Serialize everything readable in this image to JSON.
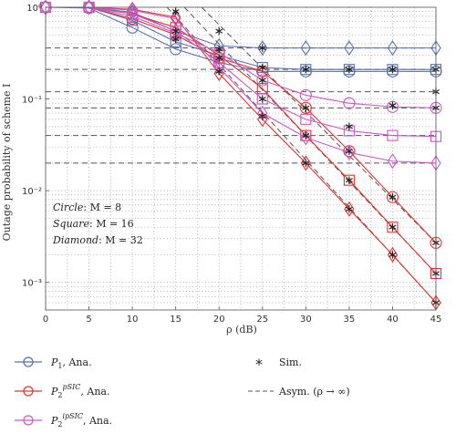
{
  "chart_data": {
    "type": "line",
    "xlabel": "ρ (dB)",
    "ylabel": "Outage probability of scheme I",
    "x_scale": "linear",
    "y_scale": "log",
    "xlim": [
      0,
      45
    ],
    "ylim": [
      0.0005,
      1
    ],
    "grid": true,
    "xticks": [
      0,
      5,
      10,
      15,
      20,
      25,
      30,
      35,
      40,
      45
    ],
    "xtick_labels": [
      "0",
      "5",
      "10",
      "15",
      "20",
      "25",
      "30",
      "35",
      "40",
      "45"
    ],
    "yticks": [
      1,
      0.1,
      0.01,
      0.001
    ],
    "ytick_labels": [
      "10⁰",
      "10⁻¹",
      "10⁻²",
      "10⁻³"
    ],
    "annotations": [
      {
        "shape_word": "Circle",
        "text": ": M = 8"
      },
      {
        "shape_word": "Square",
        "text": ": M = 16"
      },
      {
        "shape_word": "Diamond",
        "text": ": M = 32"
      }
    ],
    "colors": {
      "P1": "#5a6fb0",
      "P2pSIC": "#e8302a",
      "P2ipSIC": "#c65bc6",
      "asym": "#555555",
      "sim": "#222222"
    },
    "x": [
      0,
      5,
      10,
      15,
      20,
      25,
      30,
      35,
      40,
      45
    ],
    "series": [
      {
        "group": "P1",
        "marker": "circle",
        "values": [
          1,
          0.98,
          0.6,
          0.35,
          0.25,
          0.2,
          0.2,
          0.2,
          0.2,
          0.2
        ]
      },
      {
        "group": "P1",
        "marker": "square",
        "values": [
          1,
          1,
          0.72,
          0.42,
          0.3,
          0.22,
          0.21,
          0.21,
          0.21,
          0.21
        ]
      },
      {
        "group": "P1",
        "marker": "diamond",
        "values": [
          1,
          1,
          0.88,
          0.55,
          0.38,
          0.36,
          0.36,
          0.36,
          0.36,
          0.36
        ]
      },
      {
        "group": "P2pSIC",
        "marker": "circle",
        "values": [
          1,
          1,
          0.75,
          0.5,
          0.28,
          0.2,
          0.08,
          0.027,
          0.0085,
          0.0027
        ]
      },
      {
        "group": "P2pSIC",
        "marker": "square",
        "values": [
          1,
          1,
          0.85,
          0.6,
          0.3,
          0.13,
          0.04,
          0.013,
          0.004,
          0.00125
        ]
      },
      {
        "group": "P2pSIC",
        "marker": "diamond",
        "values": [
          1,
          1,
          0.95,
          0.78,
          0.19,
          0.06,
          0.02,
          0.0063,
          0.002,
          0.0006
        ]
      },
      {
        "group": "P2ipSIC",
        "marker": "circle",
        "values": [
          1,
          1,
          0.8,
          0.52,
          0.32,
          0.16,
          0.11,
          0.09,
          0.082,
          0.08
        ]
      },
      {
        "group": "P2ipSIC",
        "marker": "square",
        "values": [
          1,
          1,
          0.85,
          0.55,
          0.25,
          0.1,
          0.06,
          0.045,
          0.04,
          0.039
        ]
      },
      {
        "group": "P2ipSIC",
        "marker": "diamond",
        "values": [
          1,
          1,
          0.93,
          0.75,
          0.22,
          0.07,
          0.038,
          0.026,
          0.021,
          0.02
        ]
      }
    ],
    "sim_points": [
      [
        15,
        0.9
      ],
      [
        15,
        0.55
      ],
      [
        15,
        0.45
      ],
      [
        20,
        0.55
      ],
      [
        20,
        0.35
      ],
      [
        20,
        0.28
      ],
      [
        20,
        0.2
      ],
      [
        25,
        0.36
      ],
      [
        25,
        0.22
      ],
      [
        25,
        0.16
      ],
      [
        25,
        0.1
      ],
      [
        25,
        0.065
      ],
      [
        30,
        0.21
      ],
      [
        30,
        0.08
      ],
      [
        30,
        0.04
      ],
      [
        30,
        0.02
      ],
      [
        35,
        0.21
      ],
      [
        35,
        0.05
      ],
      [
        35,
        0.027
      ],
      [
        35,
        0.013
      ],
      [
        35,
        0.0063
      ],
      [
        40,
        0.21
      ],
      [
        40,
        0.085
      ],
      [
        40,
        0.0085
      ],
      [
        40,
        0.004
      ],
      [
        40,
        0.002
      ],
      [
        45,
        0.21
      ],
      [
        45,
        0.12
      ],
      [
        45,
        0.08
      ],
      [
        45,
        0.0027
      ],
      [
        45,
        0.00125
      ],
      [
        45,
        0.0006
      ]
    ],
    "asymptotes": {
      "horizontal": [
        0.36,
        0.21,
        0.12,
        0.08,
        0.04,
        0.02
      ],
      "sloped": [
        [
          [
            14,
            1
          ],
          [
            45,
            0.0006
          ]
        ],
        [
          [
            16,
            1
          ],
          [
            45,
            0.00125
          ]
        ],
        [
          [
            18,
            1
          ],
          [
            45,
            0.0027
          ]
        ]
      ]
    },
    "legend": {
      "placement": "bottom",
      "entries": [
        {
          "marker": "circle-line",
          "group": "P1",
          "label_main": "P",
          "label_sub": "1",
          "label_rest": ", Ana."
        },
        {
          "marker": "star",
          "group": "sim",
          "label_main": "Sim."
        },
        {
          "marker": "circle-line",
          "group": "P2pSIC",
          "label_main": "P",
          "label_sub": "2",
          "label_sup": "pSIC",
          "label_rest": ", Ana."
        },
        {
          "marker": "dash",
          "group": "asym",
          "label_main": "Asym. (ρ → ∞)"
        },
        {
          "marker": "circle-line",
          "group": "P2ipSIC",
          "label_main": "P",
          "label_sub": "2",
          "label_sup": "ipSIC",
          "label_rest": ", Ana."
        }
      ]
    }
  }
}
